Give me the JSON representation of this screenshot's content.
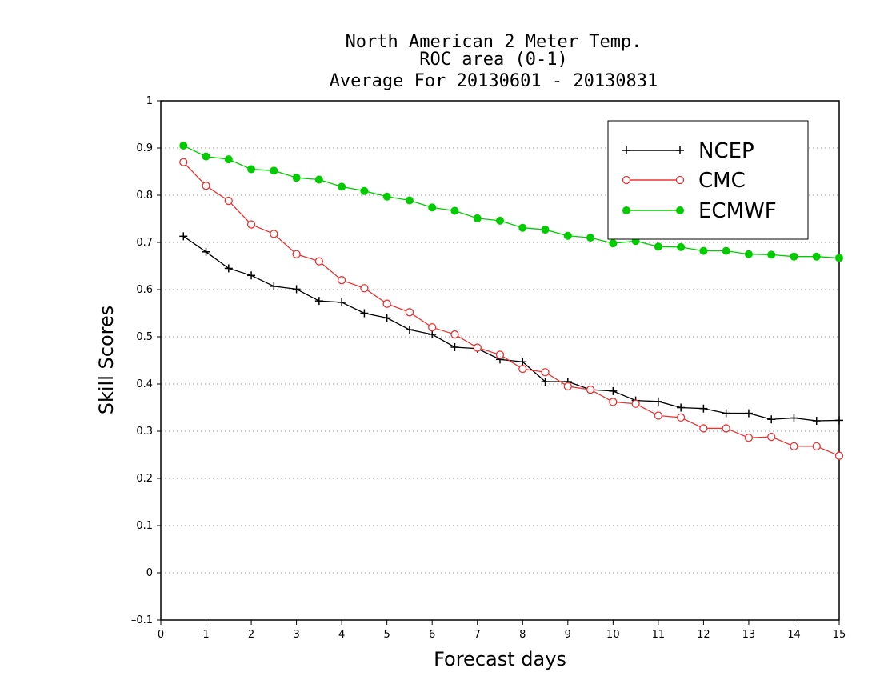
{
  "chart_data": {
    "type": "line",
    "title_lines": [
      "North American 2 Meter Temp.",
      "ROC area (0-1)",
      "Average For 20130601 - 20130831"
    ],
    "xlabel": "Forecast days",
    "ylabel": "Skill Scores",
    "xlim": [
      0,
      15
    ],
    "ylim": [
      -0.1,
      1
    ],
    "x_ticks": [
      "0",
      "1",
      "2",
      "3",
      "4",
      "5",
      "6",
      "7",
      "8",
      "9",
      "10",
      "11",
      "12",
      "13",
      "14",
      "15"
    ],
    "y_ticks": [
      "–0.1",
      "0",
      "0.1",
      "0.2",
      "0.3",
      "0.4",
      "0.5",
      "0.6",
      "0.7",
      "0.8",
      "0.9",
      "1"
    ],
    "grid": "horizontal dotted",
    "legend_position": "top-right",
    "x": [
      0.5,
      1,
      1.5,
      2,
      2.5,
      3,
      3.5,
      4,
      4.5,
      5,
      5.5,
      6,
      6.5,
      7,
      7.5,
      8,
      8.5,
      9,
      9.5,
      10,
      10.5,
      11,
      11.5,
      12,
      12.5,
      13,
      13.5,
      14,
      14.5,
      15
    ],
    "series": [
      {
        "name": "NCEP",
        "color": "#000000",
        "marker": "plus",
        "values": [
          0.713,
          0.68,
          0.645,
          0.63,
          0.607,
          0.601,
          0.576,
          0.573,
          0.55,
          0.54,
          0.515,
          0.505,
          0.478,
          0.475,
          0.452,
          0.447,
          0.405,
          0.405,
          0.388,
          0.385,
          0.365,
          0.363,
          0.35,
          0.348,
          0.338,
          0.338,
          0.325,
          0.328,
          0.322,
          0.323
        ]
      },
      {
        "name": "CMC",
        "color": "#ee3333",
        "marker": "open-circle",
        "values": [
          0.87,
          0.82,
          0.788,
          0.738,
          0.718,
          0.675,
          0.66,
          0.62,
          0.603,
          0.57,
          0.552,
          0.52,
          0.505,
          0.477,
          0.462,
          0.432,
          0.425,
          0.395,
          0.388,
          0.362,
          0.358,
          0.333,
          0.329,
          0.306,
          0.306,
          0.286,
          0.288,
          0.268,
          0.268,
          0.248
        ]
      },
      {
        "name": "ECMWF",
        "color": "#00cc00",
        "marker": "filled-circle",
        "values": [
          0.905,
          0.882,
          0.876,
          0.855,
          0.852,
          0.837,
          0.833,
          0.818,
          0.809,
          0.797,
          0.789,
          0.774,
          0.767,
          0.751,
          0.746,
          0.731,
          0.727,
          0.714,
          0.71,
          0.698,
          0.703,
          0.691,
          0.69,
          0.682,
          0.682,
          0.675,
          0.674,
          0.67,
          0.67,
          0.667
        ]
      }
    ]
  }
}
